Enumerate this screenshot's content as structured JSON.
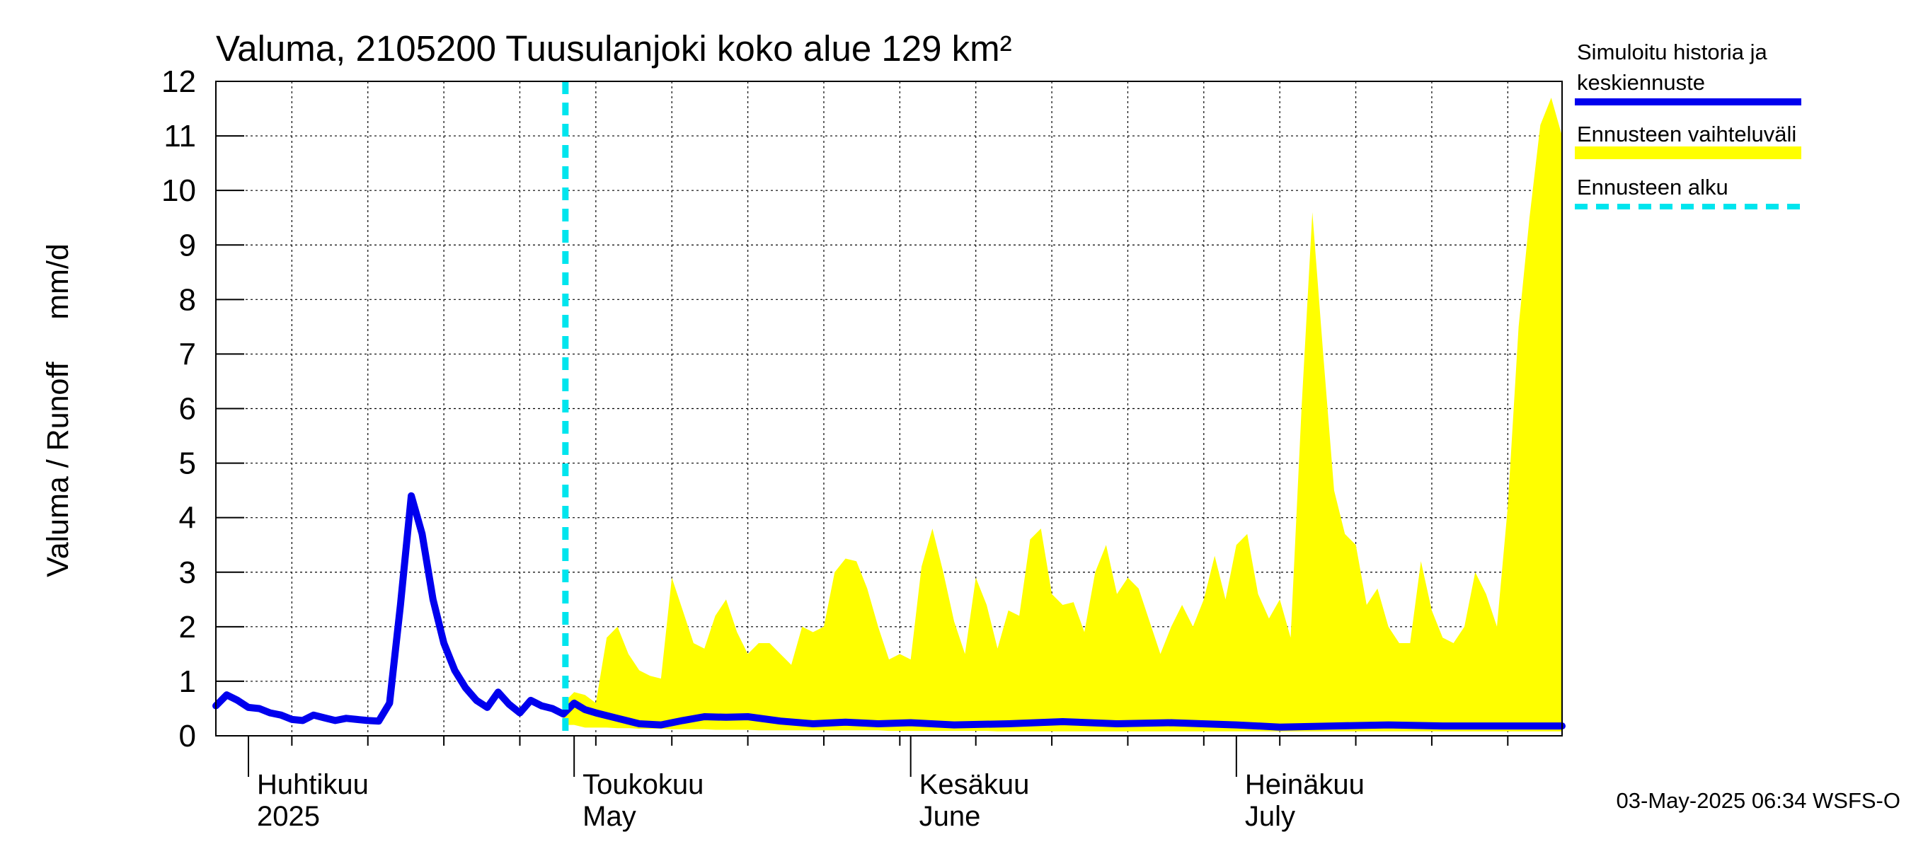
{
  "chart_data": {
    "type": "area",
    "title": "Valuma, 2105200 Tuusulanjoki koko alue 129 km²",
    "ylabel": "Valuma / Runoff     mm/d",
    "ylim": [
      0,
      12
    ],
    "yticks": [
      "0",
      "1",
      "2",
      "3",
      "4",
      "5",
      "6",
      "7",
      "8",
      "9",
      "10",
      "11",
      "12"
    ],
    "xlim": [
      "2025-03-29",
      "2025-07-31"
    ],
    "grid": true,
    "months": [
      {
        "date": "2025-04-01",
        "fi": "Huhtikuu",
        "en": "2025"
      },
      {
        "date": "2025-05-01",
        "fi": "Toukokuu",
        "en": "May"
      },
      {
        "date": "2025-06-01",
        "fi": "Kesäkuu",
        "en": "June"
      },
      {
        "date": "2025-07-01",
        "fi": "Heinäkuu",
        "en": "July"
      }
    ],
    "forecast_start": "2025-04-30",
    "legend": {
      "position": "right",
      "items": [
        {
          "label_line1": "Simuloitu historia ja",
          "label_line2": "keskiennuste",
          "color": "#0000ee",
          "style": "solid"
        },
        {
          "label_line1": "Ennusteen vaihteluväli",
          "color": "#ffff00",
          "style": "band"
        },
        {
          "label_line1": "Ennusteen alku",
          "color": "#00e5ee",
          "style": "dashed"
        }
      ]
    },
    "colors": {
      "median": "#0000ee",
      "band": "#ffff00",
      "forecast_start": "#00e5ee"
    },
    "series": [
      {
        "name": "Simuloitu historia ja keskiennuste",
        "x": [
          "2025-03-29",
          "2025-03-30",
          "2025-03-31",
          "2025-04-01",
          "2025-04-02",
          "2025-04-03",
          "2025-04-04",
          "2025-04-05",
          "2025-04-06",
          "2025-04-07",
          "2025-04-08",
          "2025-04-09",
          "2025-04-10",
          "2025-04-11",
          "2025-04-12",
          "2025-04-13",
          "2025-04-14",
          "2025-04-15",
          "2025-04-16",
          "2025-04-17",
          "2025-04-18",
          "2025-04-19",
          "2025-04-20",
          "2025-04-21",
          "2025-04-22",
          "2025-04-23",
          "2025-04-24",
          "2025-04-25",
          "2025-04-26",
          "2025-04-27",
          "2025-04-28",
          "2025-04-29",
          "2025-04-30",
          "2025-05-01",
          "2025-05-02",
          "2025-05-03",
          "2025-05-05",
          "2025-05-07",
          "2025-05-09",
          "2025-05-11",
          "2025-05-13",
          "2025-05-15",
          "2025-05-17",
          "2025-05-20",
          "2025-05-23",
          "2025-05-26",
          "2025-05-29",
          "2025-06-01",
          "2025-06-05",
          "2025-06-10",
          "2025-06-15",
          "2025-06-20",
          "2025-06-25",
          "2025-07-01",
          "2025-07-05",
          "2025-07-10",
          "2025-07-15",
          "2025-07-20",
          "2025-07-25",
          "2025-07-31"
        ],
        "y": [
          0.55,
          0.75,
          0.65,
          0.52,
          0.5,
          0.42,
          0.38,
          0.3,
          0.28,
          0.38,
          0.33,
          0.28,
          0.32,
          0.3,
          0.28,
          0.27,
          0.6,
          2.4,
          4.4,
          3.7,
          2.5,
          1.7,
          1.2,
          0.88,
          0.65,
          0.52,
          0.8,
          0.58,
          0.42,
          0.65,
          0.55,
          0.5,
          0.4,
          0.6,
          0.48,
          0.42,
          0.32,
          0.22,
          0.2,
          0.28,
          0.35,
          0.34,
          0.35,
          0.27,
          0.22,
          0.25,
          0.22,
          0.24,
          0.2,
          0.22,
          0.26,
          0.22,
          0.24,
          0.2,
          0.16,
          0.18,
          0.2,
          0.18,
          0.18,
          0.18
        ]
      },
      {
        "name": "Ennusteen vaihteluväli",
        "x": [
          "2025-04-30",
          "2025-05-01",
          "2025-05-02",
          "2025-05-03",
          "2025-05-04",
          "2025-05-05",
          "2025-05-06",
          "2025-05-07",
          "2025-05-08",
          "2025-05-09",
          "2025-05-10",
          "2025-05-11",
          "2025-05-12",
          "2025-05-13",
          "2025-05-14",
          "2025-05-15",
          "2025-05-16",
          "2025-05-17",
          "2025-05-18",
          "2025-05-19",
          "2025-05-20",
          "2025-05-21",
          "2025-05-22",
          "2025-05-23",
          "2025-05-24",
          "2025-05-25",
          "2025-05-26",
          "2025-05-27",
          "2025-05-28",
          "2025-05-29",
          "2025-05-30",
          "2025-05-31",
          "2025-06-01",
          "2025-06-02",
          "2025-06-03",
          "2025-06-04",
          "2025-06-05",
          "2025-06-06",
          "2025-06-07",
          "2025-06-08",
          "2025-06-09",
          "2025-06-10",
          "2025-06-11",
          "2025-06-12",
          "2025-06-13",
          "2025-06-14",
          "2025-06-15",
          "2025-06-16",
          "2025-06-17",
          "2025-06-18",
          "2025-06-19",
          "2025-06-20",
          "2025-06-21",
          "2025-06-22",
          "2025-06-23",
          "2025-06-24",
          "2025-06-25",
          "2025-06-26",
          "2025-06-27",
          "2025-06-28",
          "2025-06-29",
          "2025-06-30",
          "2025-07-01",
          "2025-07-02",
          "2025-07-03",
          "2025-07-04",
          "2025-07-05",
          "2025-07-06",
          "2025-07-07",
          "2025-07-08",
          "2025-07-09",
          "2025-07-10",
          "2025-07-11",
          "2025-07-12",
          "2025-07-13",
          "2025-07-14",
          "2025-07-15",
          "2025-07-16",
          "2025-07-17",
          "2025-07-18",
          "2025-07-19",
          "2025-07-20",
          "2025-07-21",
          "2025-07-22",
          "2025-07-23",
          "2025-07-24",
          "2025-07-25",
          "2025-07-26",
          "2025-07-27",
          "2025-07-28",
          "2025-07-29",
          "2025-07-30",
          "2025-07-31"
        ],
        "upper": [
          0.6,
          0.8,
          0.75,
          0.6,
          1.8,
          2.0,
          1.5,
          1.2,
          1.1,
          1.05,
          2.9,
          2.3,
          1.7,
          1.6,
          2.2,
          2.5,
          1.9,
          1.5,
          1.7,
          1.7,
          1.5,
          1.3,
          2.0,
          1.9,
          2.0,
          3.0,
          3.25,
          3.2,
          2.7,
          2.0,
          1.4,
          1.5,
          1.4,
          3.1,
          3.8,
          3.0,
          2.1,
          1.5,
          2.9,
          2.4,
          1.6,
          2.3,
          2.2,
          3.6,
          3.8,
          2.6,
          2.4,
          2.45,
          1.9,
          3.0,
          3.5,
          2.6,
          2.9,
          2.7,
          2.1,
          1.5,
          2.0,
          2.4,
          2.0,
          2.5,
          3.3,
          2.5,
          3.5,
          3.7,
          2.6,
          2.15,
          2.5,
          1.8,
          6.0,
          9.6,
          7.0,
          4.5,
          3.7,
          3.5,
          2.4,
          2.7,
          2.0,
          1.7,
          1.7,
          3.2,
          2.3,
          1.8,
          1.7,
          2.0,
          3.0,
          2.6,
          2.0,
          4.2,
          7.5,
          9.5,
          11.2,
          11.7,
          11.0
        ],
        "lower": [
          0.2,
          0.2,
          0.15,
          0.15,
          0.15,
          0.14,
          0.14,
          0.13,
          0.13,
          0.13,
          0.12,
          0.12,
          0.12,
          0.12,
          0.11,
          0.11,
          0.11,
          0.11,
          0.1,
          0.1,
          0.1,
          0.1,
          0.1,
          0.1,
          0.1,
          0.1,
          0.1,
          0.1,
          0.1,
          0.1,
          0.09,
          0.09,
          0.09,
          0.09,
          0.09,
          0.09,
          0.09,
          0.09,
          0.09,
          0.09,
          0.08,
          0.08,
          0.08,
          0.08,
          0.08,
          0.08,
          0.08,
          0.08,
          0.08,
          0.08,
          0.08,
          0.08,
          0.08,
          0.08,
          0.08,
          0.08,
          0.08,
          0.08,
          0.08,
          0.08,
          0.08,
          0.08,
          0.08,
          0.08,
          0.08,
          0.08,
          0.08,
          0.08,
          0.08,
          0.08,
          0.08,
          0.08,
          0.08,
          0.08,
          0.08,
          0.08,
          0.08,
          0.08,
          0.08,
          0.08,
          0.08,
          0.08,
          0.08,
          0.08,
          0.08,
          0.08,
          0.08,
          0.08,
          0.08,
          0.08,
          0.08,
          0.08,
          0.08
        ]
      }
    ]
  },
  "footer": {
    "timestamp": "03-May-2025 06:34 WSFS-O"
  }
}
